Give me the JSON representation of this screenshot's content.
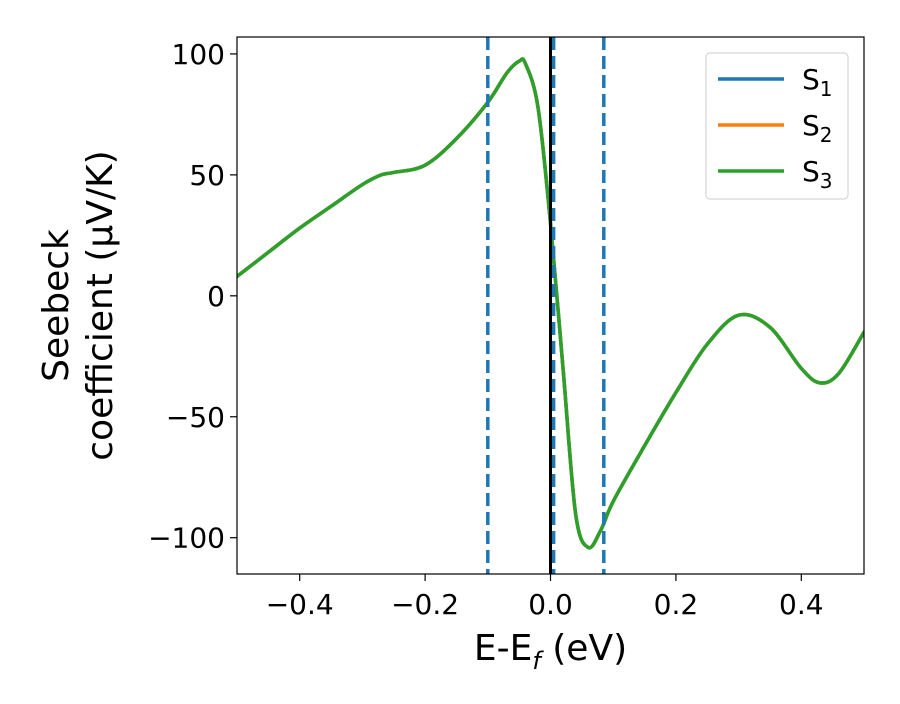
{
  "chart_data": {
    "type": "line",
    "xlabel": "E-E",
    "xlabel_sub": "f",
    "xlabel_unit": " (eV)",
    "ylabel_line1": "Seebeck",
    "ylabel_line2": "coefficient  (μV/K)",
    "xlim": [
      -0.5,
      0.5
    ],
    "ylim": [
      -115,
      107
    ],
    "xticks": [
      -0.4,
      -0.2,
      0.0,
      0.2,
      0.4
    ],
    "xtick_labels": [
      "−0.4",
      "−0.2",
      "0.0",
      "0.2",
      "0.4"
    ],
    "yticks": [
      -100,
      -50,
      0,
      50,
      100
    ],
    "ytick_labels": [
      "−100",
      "−50",
      "0",
      "50",
      "100"
    ],
    "legend_position": "top-right",
    "grid": false,
    "series": [
      {
        "name": "S",
        "sub": "1",
        "color": "#1f77b4"
      },
      {
        "name": "S",
        "sub": "2",
        "color": "#ff7f0e"
      },
      {
        "name": "S",
        "sub": "3",
        "color": "#2ca02c"
      }
    ],
    "x": [
      -0.5,
      -0.45,
      -0.4,
      -0.35,
      -0.3,
      -0.27,
      -0.25,
      -0.2,
      -0.15,
      -0.1,
      -0.07,
      -0.05,
      -0.04,
      -0.02,
      0.0,
      0.02,
      0.04,
      0.06,
      0.08,
      0.1,
      0.15,
      0.2,
      0.25,
      0.3,
      0.35,
      0.4,
      0.43,
      0.46,
      0.5
    ],
    "y": [
      8,
      18,
      28,
      37,
      46,
      50,
      51,
      54,
      65,
      80,
      92,
      97,
      96,
      78,
      30,
      -30,
      -90,
      -104,
      -97,
      -85,
      -62,
      -40,
      -20,
      -8,
      -13,
      -30,
      -36,
      -32,
      -15
    ],
    "vlines": [
      {
        "x": -0.1,
        "style": "dashed",
        "color": "#1f77b4"
      },
      {
        "x": 0.005,
        "style": "dashed",
        "color": "#1f77b4"
      },
      {
        "x": 0.085,
        "style": "dashed",
        "color": "#1f77b4"
      },
      {
        "x": 0.0,
        "style": "solid",
        "color": "#000000"
      }
    ]
  }
}
